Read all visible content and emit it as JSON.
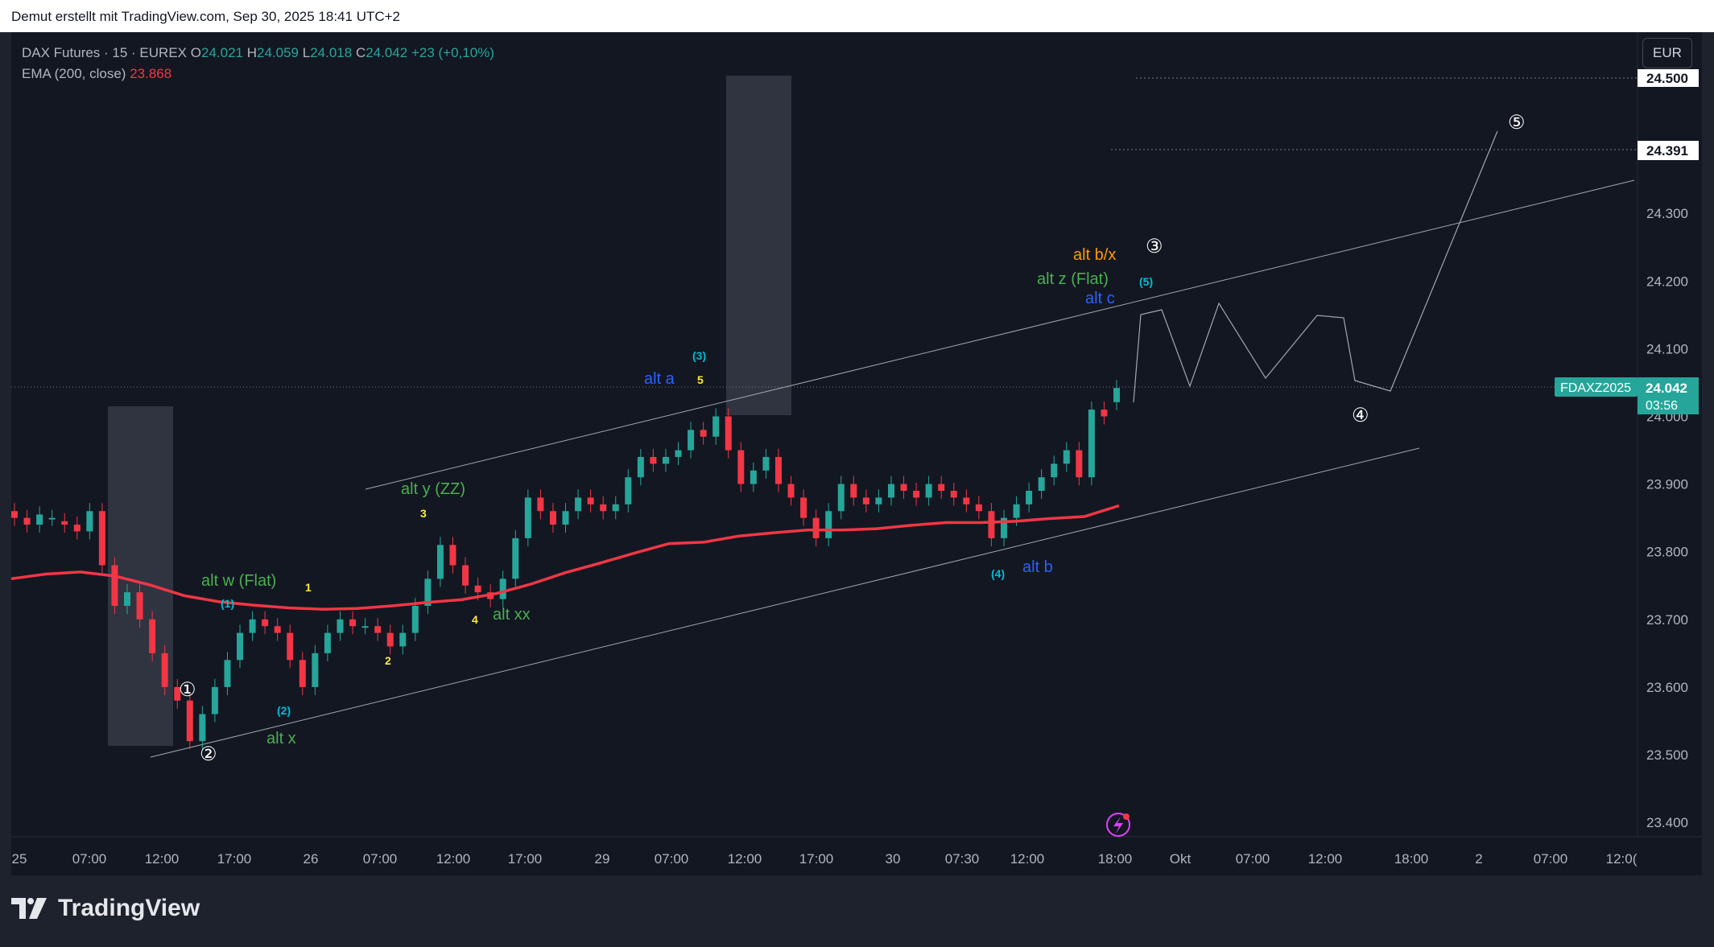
{
  "header": {
    "caption": "Demut erstellt mit TradingView.com, Sep 30, 2025 18:41 UTC+2"
  },
  "legend": {
    "symbol": "DAX Futures · 15 · EUREX",
    "o_label": "O",
    "o": "24.021",
    "h_label": "H",
    "h": "24.059",
    "l_label": "L",
    "l": "24.018",
    "c_label": "C",
    "c": "24.042",
    "change": "+23 (+0,10%)",
    "ema_label": "EMA (200, close)",
    "ema_value": "23.868"
  },
  "currency": "EUR",
  "price_axis": {
    "ticks": [
      "24.500",
      "24.300",
      "24.200",
      "24.100",
      "24.000",
      "23.900",
      "23.800",
      "23.700",
      "23.600",
      "23.500",
      "23.400"
    ],
    "marked_level": "24.391",
    "symbol_tag": "FDAXZ2025",
    "last_price": "24.042",
    "countdown": "03:56"
  },
  "time_axis": {
    "ticks": [
      "25",
      "07:00",
      "12:00",
      "17:00",
      "26",
      "07:00",
      "12:00",
      "17:00",
      "29",
      "07:00",
      "12:00",
      "17:00",
      "30",
      "07:30",
      "12:00",
      "18:00",
      "Okt",
      "07:00",
      "12:00",
      "18:00",
      "2",
      "07:00",
      "12:0("
    ]
  },
  "labels": {
    "alt_w": "alt w (Flat)",
    "alt_x": "alt x",
    "alt_y": "alt y (ZZ)",
    "alt_xx": "alt xx",
    "alt_a": "alt a",
    "alt_b": "alt b",
    "alt_c": "alt c",
    "alt_z": "alt z (Flat)",
    "alt_bx": "alt b/x",
    "w1": "(1)",
    "w2": "(2)",
    "w3": "(3)",
    "w4": "(4)",
    "w5": "(5)",
    "s1": "1",
    "s2": "2",
    "s3": "3",
    "s4": "4",
    "s5": "5",
    "c1": "①",
    "c2": "②",
    "c3": "③",
    "c4": "④",
    "c5": "⑤"
  },
  "footer": {
    "brand": "TradingView"
  },
  "colors": {
    "bg": "#131722",
    "up": "#26a69a",
    "down": "#f23645",
    "ema": "#f23645",
    "green_label": "#4caf50",
    "blue_label": "#2962ff",
    "orange_label": "#ff9800",
    "yellow_label": "#ffeb3b",
    "cyan_label": "#00bcd4"
  },
  "chart_data": {
    "type": "candlestick",
    "title": "DAX Futures · 15 · EUREX",
    "ylim": [
      23350,
      24560
    ],
    "x_labels": [
      "25",
      "07:00",
      "12:00",
      "17:00",
      "26",
      "07:00",
      "12:00",
      "17:00",
      "29",
      "07:00",
      "12:00",
      "17:00",
      "30",
      "07:30",
      "12:00",
      "18:00",
      "Okt",
      "07:00",
      "12:00",
      "18:00",
      "2",
      "07:00",
      "12:0("
    ],
    "price_path": [
      [
        23850,
        23860
      ],
      [
        23840,
        23850
      ],
      [
        23855,
        23840
      ],
      [
        23850,
        23850
      ],
      [
        23840,
        23845
      ],
      [
        23830,
        23840
      ],
      [
        23860,
        23830
      ],
      [
        23780,
        23860
      ],
      [
        23720,
        23780
      ],
      [
        23740,
        23720
      ],
      [
        23700,
        23740
      ],
      [
        23650,
        23700
      ],
      [
        23600,
        23650
      ],
      [
        23580,
        23600
      ],
      [
        23520,
        23580
      ],
      [
        23560,
        23520
      ],
      [
        23600,
        23560
      ],
      [
        23640,
        23600
      ],
      [
        23680,
        23640
      ],
      [
        23700,
        23680
      ],
      [
        23690,
        23700
      ],
      [
        23680,
        23690
      ],
      [
        23640,
        23680
      ],
      [
        23600,
        23640
      ],
      [
        23650,
        23600
      ],
      [
        23680,
        23650
      ],
      [
        23700,
        23680
      ],
      [
        23690,
        23700
      ],
      [
        23690,
        23690
      ],
      [
        23680,
        23690
      ],
      [
        23660,
        23680
      ],
      [
        23680,
        23660
      ],
      [
        23720,
        23680
      ],
      [
        23760,
        23720
      ],
      [
        23810,
        23760
      ],
      [
        23780,
        23810
      ],
      [
        23750,
        23780
      ],
      [
        23740,
        23750
      ],
      [
        23730,
        23740
      ],
      [
        23760,
        23730
      ],
      [
        23820,
        23760
      ],
      [
        23880,
        23820
      ],
      [
        23860,
        23880
      ],
      [
        23840,
        23860
      ],
      [
        23860,
        23840
      ],
      [
        23880,
        23860
      ],
      [
        23870,
        23880
      ],
      [
        23860,
        23870
      ],
      [
        23870,
        23860
      ],
      [
        23910,
        23870
      ],
      [
        23940,
        23910
      ],
      [
        23930,
        23940
      ],
      [
        23940,
        23930
      ],
      [
        23950,
        23940
      ],
      [
        23980,
        23950
      ],
      [
        23970,
        23980
      ],
      [
        24000,
        23970
      ],
      [
        23950,
        24000
      ],
      [
        23900,
        23950
      ],
      [
        23920,
        23900
      ],
      [
        23940,
        23920
      ],
      [
        23900,
        23940
      ],
      [
        23880,
        23900
      ],
      [
        23850,
        23880
      ],
      [
        23820,
        23850
      ],
      [
        23860,
        23820
      ],
      [
        23900,
        23860
      ],
      [
        23880,
        23900
      ],
      [
        23870,
        23880
      ],
      [
        23880,
        23870
      ],
      [
        23900,
        23880
      ],
      [
        23890,
        23900
      ],
      [
        23880,
        23890
      ],
      [
        23900,
        23880
      ],
      [
        23890,
        23900
      ],
      [
        23880,
        23890
      ],
      [
        23870,
        23880
      ],
      [
        23860,
        23870
      ],
      [
        23820,
        23860
      ],
      [
        23850,
        23820
      ],
      [
        23870,
        23850
      ],
      [
        23890,
        23870
      ],
      [
        23910,
        23890
      ],
      [
        23930,
        23910
      ],
      [
        23950,
        23930
      ],
      [
        23910,
        23950
      ],
      [
        24010,
        23910
      ],
      [
        24000,
        24010
      ],
      [
        24042,
        24021
      ]
    ],
    "ema_200": {
      "name": "EMA (200, close)",
      "values": [
        23760,
        23767,
        23770,
        23764,
        23751,
        23735,
        23726,
        23721,
        23717,
        23715,
        23716,
        23720,
        23725,
        23729,
        23738,
        23752,
        23769,
        23783,
        23798,
        23812,
        23814,
        23823,
        23828,
        23832,
        23832,
        23834,
        23839,
        23843,
        23843,
        23845,
        23849,
        23852,
        23868
      ]
    },
    "annotated_levels": [
      24500,
      24391
    ]
  }
}
